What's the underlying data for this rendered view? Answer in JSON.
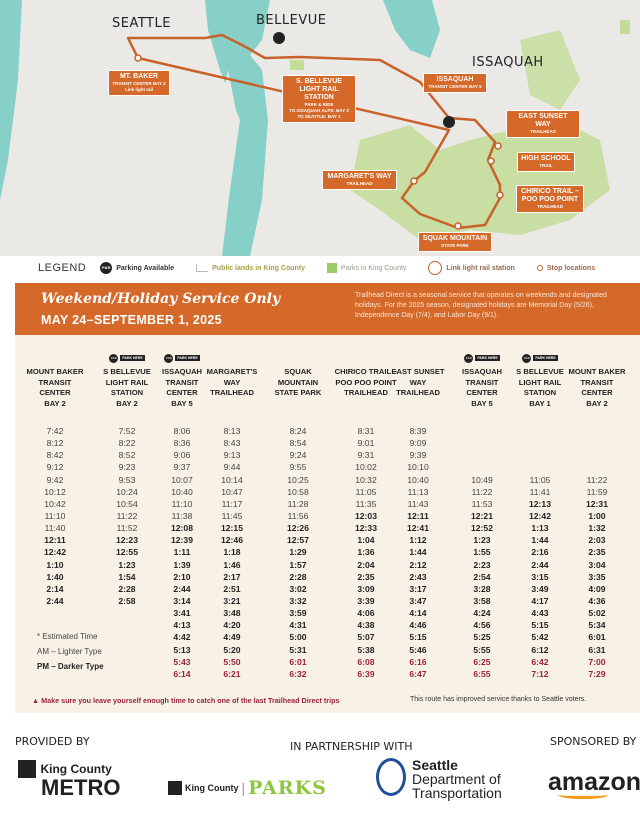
{
  "map": {
    "cities": [
      "SEATTLE",
      "BELLEVUE",
      "ISSAQUAH"
    ],
    "stops": {
      "mt_baker": {
        "name": "MT. BAKER",
        "sub": "TRANSIT CENTER BAY 2",
        "extra": "Link light rail"
      },
      "s_bellevue": {
        "name": "S. BELLEVUE LIGHT RAIL STATION",
        "sub": "PARK & RIDE",
        "extra1": "TO ISSAQUAH ALPS: BAY 2",
        "extra2": "TO SEATTLE: BAY 1"
      },
      "issaquah": {
        "name": "ISSAQUAH",
        "sub": "TRANSIT CENTER BAY 5"
      },
      "east_sunset": {
        "name": "EAST SUNSET WAY",
        "sub": "TRAILHEAD"
      },
      "high_school": {
        "name": "HIGH SCHOOL",
        "sub": "TRAIL"
      },
      "margarets": {
        "name": "MARGARET'S WAY",
        "sub": "TRAILHEAD"
      },
      "chirico": {
        "name": "CHIRICO TRAIL – POO POO POINT",
        "sub": "TRAILHEAD"
      },
      "squak": {
        "name": "SQUAK MOUNTAIN",
        "sub": "STATE PARK"
      }
    },
    "pr_badge": "P&R",
    "colors": {
      "route": "#c8612a",
      "water": "#86d0c8",
      "park": "#c3dc98",
      "land": "#ebe9e5",
      "label": "#d4692a"
    }
  },
  "legend": {
    "title": "LEGEND",
    "items": [
      "Parking Available",
      "Public lands in King County",
      "Parks in King County",
      "Link light rail station",
      "Stop locations"
    ]
  },
  "banner": {
    "title": "Weekend/Holiday Service Only",
    "dates": "MAY 24–SEPTEMBER 1, 2025",
    "note": "Trailhead Direct is a seasonal service that operates on weekends and designated holidays. For the 2025 season, designated holidays are Memorial Day (5/26), Independence Day (7/4), and Labor Day (9/1)."
  },
  "schedule": {
    "park_here": "PARK HERE",
    "columns": [
      {
        "header": [
          "MOUNT BAKER",
          "TRANSIT",
          "CENTER",
          "BAY 2"
        ],
        "park": false,
        "times": [
          "7:42",
          "8:12",
          "8:42",
          "9:12",
          "9:42",
          "10:12",
          "10:42",
          "11:10",
          "11:40",
          "12:11",
          "12:42",
          "1:10",
          "1:40",
          "2:14",
          "2:44",
          "",
          "",
          "",
          "",
          "",
          ""
        ]
      },
      {
        "header": [
          "S BELLEVUE",
          "LIGHT RAIL",
          "STATION",
          "BAY 2"
        ],
        "park": true,
        "times": [
          "7:52",
          "8:22",
          "8:52",
          "9:23",
          "9:53",
          "10:24",
          "10:54",
          "11:22",
          "11:52",
          "12:23",
          "12:55",
          "1:23",
          "1:54",
          "2:28",
          "2:58",
          "",
          "",
          "",
          "",
          "",
          ""
        ]
      },
      {
        "header": [
          "ISSAQUAH",
          "TRANSIT",
          "CENTER",
          "BAY 5"
        ],
        "park": true,
        "times": [
          "8:06",
          "8:36",
          "9:06",
          "9:37",
          "10:07",
          "10:40",
          "11:10",
          "11:38",
          "12:08",
          "12:39",
          "1:11",
          "1:39",
          "2:10",
          "2:44",
          "3:14",
          "3:41",
          "4:13",
          "4:42",
          "5:13",
          "5:43",
          "6:14"
        ]
      },
      {
        "header": [
          "MARGARET'S",
          "WAY",
          "TRAILHEAD"
        ],
        "park": false,
        "times": [
          "8:13",
          "8:43",
          "9:13",
          "9:44",
          "10:14",
          "10:47",
          "11:17",
          "11:45",
          "12:15",
          "12:46",
          "1:18",
          "1:46",
          "2:17",
          "2:51",
          "3:21",
          "3:48",
          "4:20",
          "4:49",
          "5:20",
          "5:50",
          "6:21"
        ]
      },
      {
        "header": [
          "SQUAK",
          "MOUNTAIN",
          "STATE PARK"
        ],
        "park": false,
        "times": [
          "8:24",
          "8:54",
          "9:24",
          "9:55",
          "10:25",
          "10:58",
          "11:28",
          "11:56",
          "12:26",
          "12:57",
          "1:29",
          "1:57",
          "2:28",
          "3:02",
          "3:32",
          "3:59",
          "4:31",
          "5:00",
          "5:31",
          "6:01",
          "6:32"
        ]
      },
      {
        "header": [
          "CHIRICO TRAIL –",
          "POO POO POINT",
          "TRAILHEAD"
        ],
        "park": false,
        "times": [
          "8:31",
          "9:01",
          "9:31",
          "10:02",
          "10:32",
          "11:05",
          "11:35",
          "12:03",
          "12:33",
          "1:04",
          "1:36",
          "2:04",
          "2:35",
          "3:09",
          "3:39",
          "4:06",
          "4:38",
          "5:07",
          "5:38",
          "6:08",
          "6:39"
        ]
      },
      {
        "header": [
          "EAST SUNSET",
          "WAY",
          "TRAILHEAD"
        ],
        "park": false,
        "times": [
          "8:39",
          "9:09",
          "9:39",
          "10:10",
          "10:40",
          "11:13",
          "11:43",
          "12:11",
          "12:41",
          "1:12",
          "1:44",
          "2:12",
          "2:43",
          "3:17",
          "3:47",
          "4:14",
          "4:46",
          "5:15",
          "5:46",
          "6:16",
          "6:47"
        ]
      },
      {
        "header": [
          "ISSAQUAH",
          "TRANSIT",
          "CENTER",
          "BAY 5"
        ],
        "park": true,
        "times": [
          "",
          "",
          "",
          "",
          "10:49",
          "11:22",
          "11:53",
          "12:21",
          "12:52",
          "1:23",
          "1:55",
          "2:23",
          "2:54",
          "3:28",
          "3:58",
          "4:24",
          "4:56",
          "5:25",
          "5:55",
          "6:25",
          "6:55"
        ]
      },
      {
        "header": [
          "S BELLEVUE",
          "LIGHT RAIL",
          "STATION",
          "BAY 1"
        ],
        "park": true,
        "times": [
          "",
          "",
          "",
          "",
          "11:05",
          "11:41",
          "12:13",
          "12:42",
          "1:13",
          "1:44",
          "2:16",
          "2:44",
          "3:15",
          "3:49",
          "4:17",
          "4:43",
          "5:15",
          "5:42",
          "6:12",
          "6:42",
          "7:12"
        ]
      },
      {
        "header": [
          "MOUNT BAKER",
          "TRANSIT",
          "CENTER",
          "BAY 2"
        ],
        "park": false,
        "times": [
          "",
          "",
          "",
          "",
          "11:22",
          "11:59",
          "12:31",
          "1:00",
          "1:32",
          "2:03",
          "2:35",
          "3:04",
          "3:35",
          "4:09",
          "4:36",
          "5:02",
          "5:34",
          "6:01",
          "6:31",
          "7:00",
          "7:29"
        ]
      }
    ],
    "key": {
      "estimated": "* Estimated Time",
      "am": "AM – Lighter Type",
      "pm": "PM – Darker Type"
    },
    "last_trip_color": "#9b2335"
  },
  "notes": {
    "warning": "Make sure you leave yourself enough time to catch one of the last Trailhead Direct trips",
    "voters": "This route has improved service thanks to Seattle voters."
  },
  "footer": {
    "provided_by": "PROVIDED BY",
    "partnership": "IN PARTNERSHIP WITH",
    "sponsored_by": "SPONSORED BY",
    "metro": [
      "King County",
      "METRO"
    ],
    "parks": [
      "King County",
      "PARKS"
    ],
    "sdot": [
      "Seattle",
      "Department of",
      "Transportation"
    ],
    "amazon": "amazon"
  }
}
